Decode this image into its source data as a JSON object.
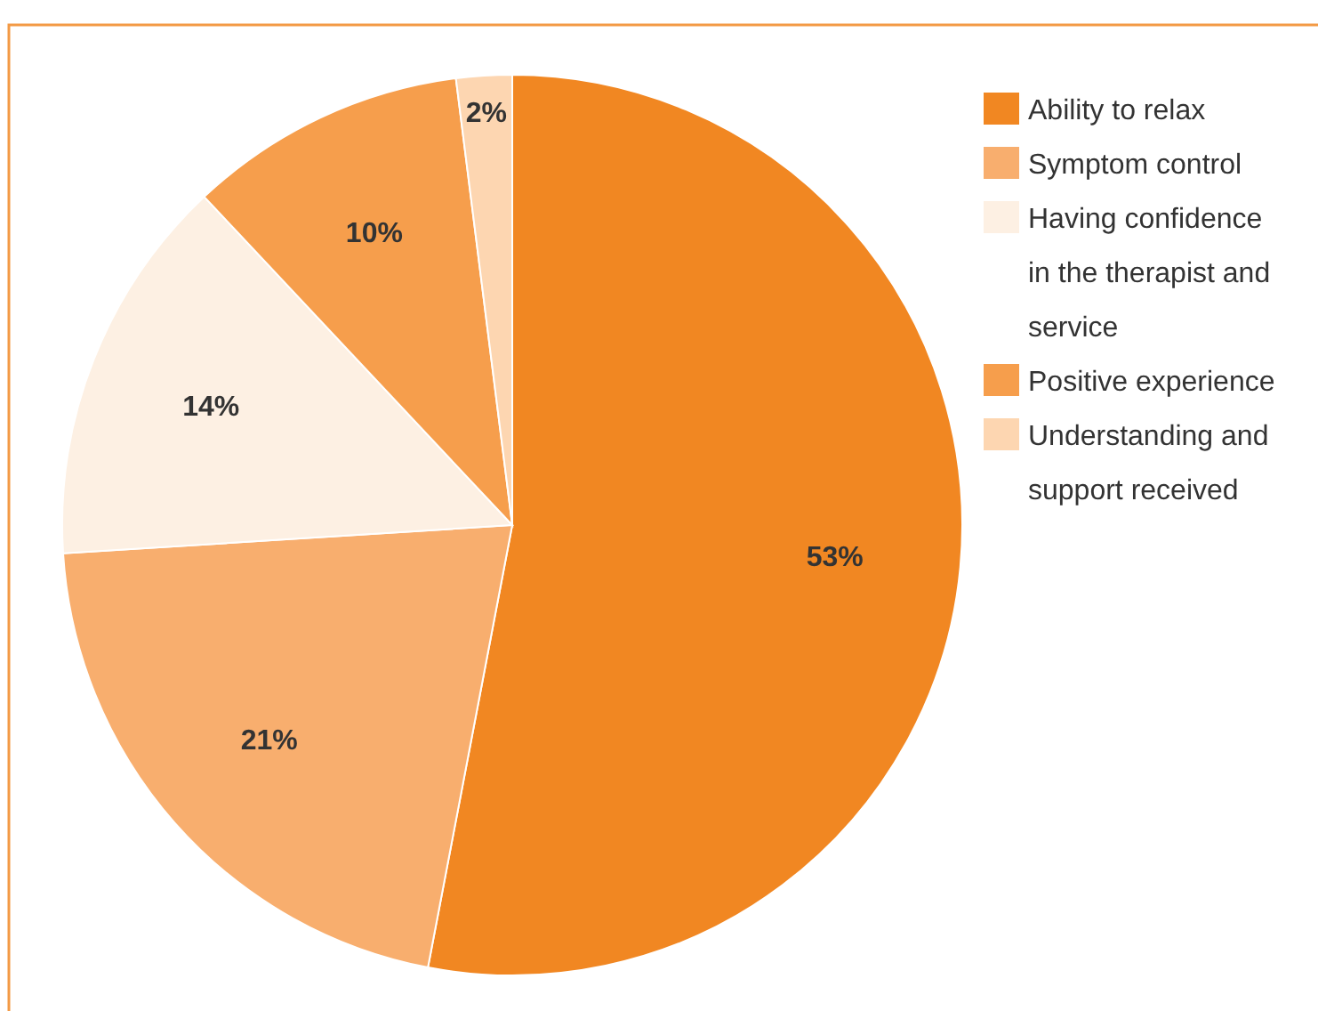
{
  "chart_data": {
    "type": "pie",
    "categories": [
      "Ability to relax",
      "Symptom control",
      "Having confidence in the therapist and service",
      "Positive experience",
      "Understanding and support received"
    ],
    "values": [
      53,
      21,
      14,
      10,
      2
    ],
    "colors": [
      "#f18722",
      "#f8ae6e",
      "#fdf0e3",
      "#f69e4c",
      "#fdd6b1"
    ],
    "value_labels": [
      "53%",
      "21%",
      "14%",
      "10%",
      "2%"
    ],
    "legend": "right"
  }
}
